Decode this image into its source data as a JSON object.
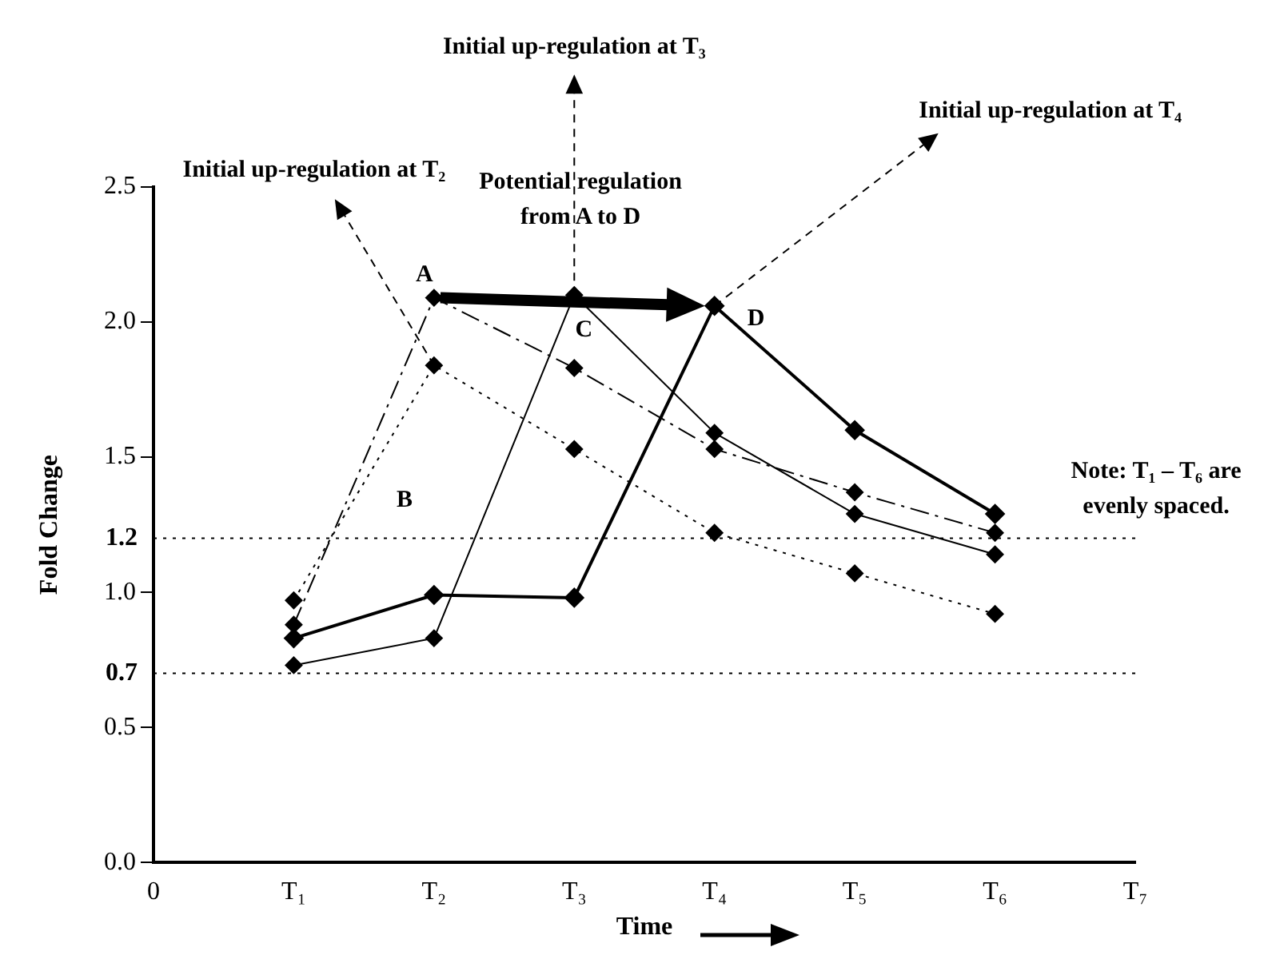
{
  "chart_data": {
    "type": "line",
    "xlabel": "Time",
    "ylabel": "Fold Change",
    "categories": [
      "0",
      "T₁",
      "T₂",
      "T₃",
      "T₄",
      "T₅",
      "T₆",
      "T₇"
    ],
    "series": [
      {
        "color": "#000000",
        "line_style": "dashdot",
        "values": [
          null,
          0.88,
          2.09,
          1.83,
          1.53,
          1.37,
          1.22,
          null
        ]
      },
      {
        "color": "#000000",
        "line_style": "dotted",
        "values": [
          null,
          0.97,
          1.84,
          1.53,
          1.22,
          1.07,
          0.92,
          null
        ]
      },
      {
        "color": "#000000",
        "line_style": "solid",
        "values": [
          null,
          0.73,
          0.83,
          2.1,
          1.59,
          1.29,
          1.14,
          null
        ]
      },
      {
        "color": "#000000",
        "line_style": "solid",
        "values": [
          null,
          0.83,
          0.99,
          0.98,
          2.06,
          1.6,
          1.29,
          null
        ]
      }
    ],
    "ylim": [
      0,
      2.5
    ],
    "yticks": [
      "0.0",
      "0.5",
      "1.0",
      "1.5",
      "2.0",
      "2.5"
    ],
    "ref_lines": [
      {
        "axis": "y",
        "value": 1.2,
        "label": "1.2",
        "color": "#000000",
        "line_style": "dotted"
      },
      {
        "axis": "y",
        "value": 0.7,
        "label": "0.7",
        "color": "#000000",
        "line_style": "dotted"
      }
    ],
    "annotations": [
      {
        "text": "Initial up-regulation at T₂",
        "x": "T₂",
        "y": 1.84
      },
      {
        "text": "Initial up-regulation at T₃",
        "x": "T₃",
        "y": 2.1
      },
      {
        "text": "Initial up-regulation at T₄",
        "x": "T₄",
        "y": 2.06
      },
      "Potential regulation from A to D",
      {
        "text": "A",
        "x": "T₂",
        "y": 2.09
      },
      "B",
      {
        "text": "C",
        "x": "T₃",
        "y": 2.1
      },
      {
        "text": "D",
        "x": "T₄",
        "y": 2.06
      },
      "Note: T₁ – T₆ are evenly spaced."
    ],
    "marker": "diamond",
    "grid": false,
    "legend": false
  }
}
